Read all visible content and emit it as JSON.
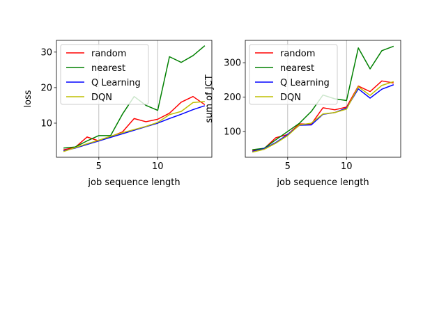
{
  "chart_data": [
    {
      "type": "line",
      "title": "",
      "xlabel": "job sequence length",
      "ylabel": "loss",
      "xlim": [
        1.4,
        14.6
      ],
      "ylim": [
        0.4,
        33.3
      ],
      "xticks": [
        5,
        10
      ],
      "yticks": [
        10,
        20,
        30
      ],
      "grid": "x-only",
      "legend_position": "top-left",
      "x": [
        2,
        3,
        4,
        5,
        6,
        7,
        8,
        9,
        10,
        11,
        12,
        13,
        14
      ],
      "series": [
        {
          "name": "random",
          "color": "#ff0000",
          "values": [
            2.5,
            3.2,
            6.1,
            5.0,
            6.2,
            7.5,
            11.3,
            10.4,
            11.1,
            12.8,
            15.9,
            17.5,
            15.2
          ]
        },
        {
          "name": "nearest",
          "color": "#008000",
          "values": [
            3.0,
            3.3,
            5.0,
            6.5,
            6.5,
            12.5,
            17.5,
            15.0,
            13.6,
            28.7,
            27.1,
            29.0,
            31.8
          ]
        },
        {
          "name": "Q Learning",
          "color": "#0000ff",
          "values": [
            2.2,
            3.0,
            4.0,
            5.0,
            6.0,
            7.0,
            8.0,
            9.0,
            10.0,
            11.3,
            12.5,
            13.8,
            14.9
          ]
        },
        {
          "name": "DQN",
          "color": "#bfbf00",
          "values": [
            2.0,
            3.1,
            4.2,
            5.2,
            6.3,
            7.3,
            8.2,
            9.1,
            10.2,
            12.4,
            13.3,
            15.8,
            16.1
          ]
        }
      ]
    },
    {
      "type": "line",
      "title": "",
      "xlabel": "job sequence length",
      "ylabel": "sum of JCT",
      "xlim": [
        1.4,
        14.6
      ],
      "ylim": [
        25,
        365
      ],
      "xticks": [
        5,
        10
      ],
      "yticks": [
        100,
        200,
        300
      ],
      "grid": "x-only",
      "legend_position": "top-left",
      "x": [
        2,
        3,
        4,
        5,
        6,
        7,
        8,
        9,
        10,
        11,
        12,
        13,
        14
      ],
      "series": [
        {
          "name": "random",
          "color": "#ff0000",
          "values": [
            44,
            50,
            82,
            91,
            122,
            121,
            169,
            163,
            171,
            232,
            216,
            247,
            241
          ]
        },
        {
          "name": "nearest",
          "color": "#008000",
          "values": [
            47,
            51,
            76,
            100,
            124,
            158,
            206,
            195,
            190,
            343,
            282,
            335,
            348
          ]
        },
        {
          "name": "Q Learning",
          "color": "#0000ff",
          "values": [
            42,
            50,
            68,
            91,
            118,
            119,
            150,
            155,
            168,
            224,
            197,
            223,
            236
          ]
        },
        {
          "name": "DQN",
          "color": "#bfbf00",
          "values": [
            40,
            48,
            66,
            88,
            119,
            124,
            151,
            155,
            165,
            230,
            205,
            234,
            245
          ]
        }
      ]
    }
  ]
}
